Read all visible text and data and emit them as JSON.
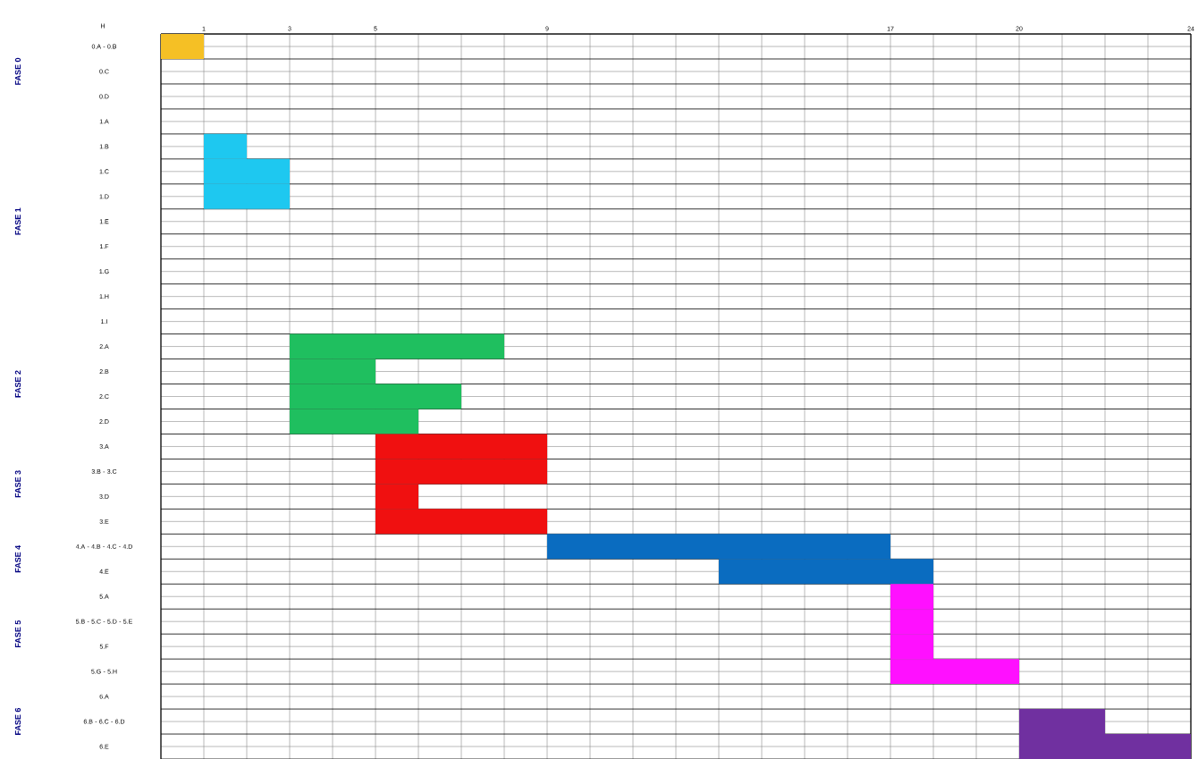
{
  "chart_data": {
    "type": "bar",
    "orientation": "horizontal",
    "xlabel": "H",
    "categories": [
      "0.A - 0.B",
      "0.C",
      "0.D",
      "1.A",
      "1.B",
      "1.C",
      "1.D",
      "1.E",
      "1.F",
      "1.G",
      "1.H",
      "1.I",
      "2.A",
      "2.B",
      "2.C",
      "2.D",
      "3.A",
      "3.B - 3.C",
      "3.D",
      "3.E",
      "4.A - 4.B - 4.C - 4.D",
      "4.E",
      "5.A",
      "5.B - 5.C - 5.D - 5.E",
      "5.F",
      "5.G - 5.H",
      "6.A",
      "6.B - 6.C - 6.D",
      "6.E"
    ],
    "base": [
      0,
      null,
      null,
      null,
      1,
      1,
      1,
      null,
      null,
      null,
      null,
      null,
      3,
      3,
      3,
      3,
      5,
      5,
      5,
      5,
      9,
      13,
      17,
      17,
      17,
      17,
      null,
      20,
      20
    ],
    "values": [
      1,
      null,
      null,
      null,
      1,
      2,
      2,
      null,
      null,
      null,
      null,
      null,
      5,
      2,
      4,
      3,
      4,
      4,
      1,
      4,
      8,
      5,
      1,
      1,
      1,
      3,
      null,
      2,
      4
    ],
    "colors": [
      "#f5c025",
      null,
      null,
      null,
      "#1ec8f0",
      "#1ec8f0",
      "#1ec8f0",
      null,
      null,
      null,
      null,
      null,
      "#1fbf5f",
      "#1fbf5f",
      "#1fbf5f",
      "#1fbf5f",
      "#f01010",
      "#f01010",
      "#f01010",
      "#f01010",
      "#0a6cc0",
      "#0a6cc0",
      "#ff10ff",
      "#ff10ff",
      "#ff10ff",
      "#ff10ff",
      null,
      "#7030a0",
      "#7030a0"
    ],
    "xlim": [
      0,
      24
    ],
    "xticks": [
      {
        "value": 0,
        "label": null
      },
      1,
      {
        "value": 2,
        "label": null
      },
      3,
      {
        "value": 4,
        "label": null
      },
      5,
      {
        "value": 6,
        "label": null
      },
      {
        "value": 7,
        "label": null
      },
      {
        "value": 8,
        "label": null
      },
      9,
      {
        "value": 10,
        "label": null
      },
      {
        "value": 11,
        "label": null
      },
      {
        "value": 12,
        "label": null
      },
      {
        "value": 13,
        "label": null
      },
      {
        "value": 14,
        "label": null
      },
      {
        "value": 15,
        "label": null
      },
      {
        "value": 16,
        "label": null
      },
      17,
      {
        "value": 18,
        "label": null
      },
      {
        "value": 19,
        "label": null
      },
      20,
      {
        "value": 21,
        "label": null
      },
      {
        "value": 22,
        "label": null
      },
      {
        "value": 23,
        "label": null
      },
      24
    ],
    "grid": true,
    "annotations": [
      "FASE 0",
      "FASE 1",
      "FASE 2",
      "FASE 3",
      "FASE 4",
      "FASE 5",
      "FASE 6"
    ]
  }
}
